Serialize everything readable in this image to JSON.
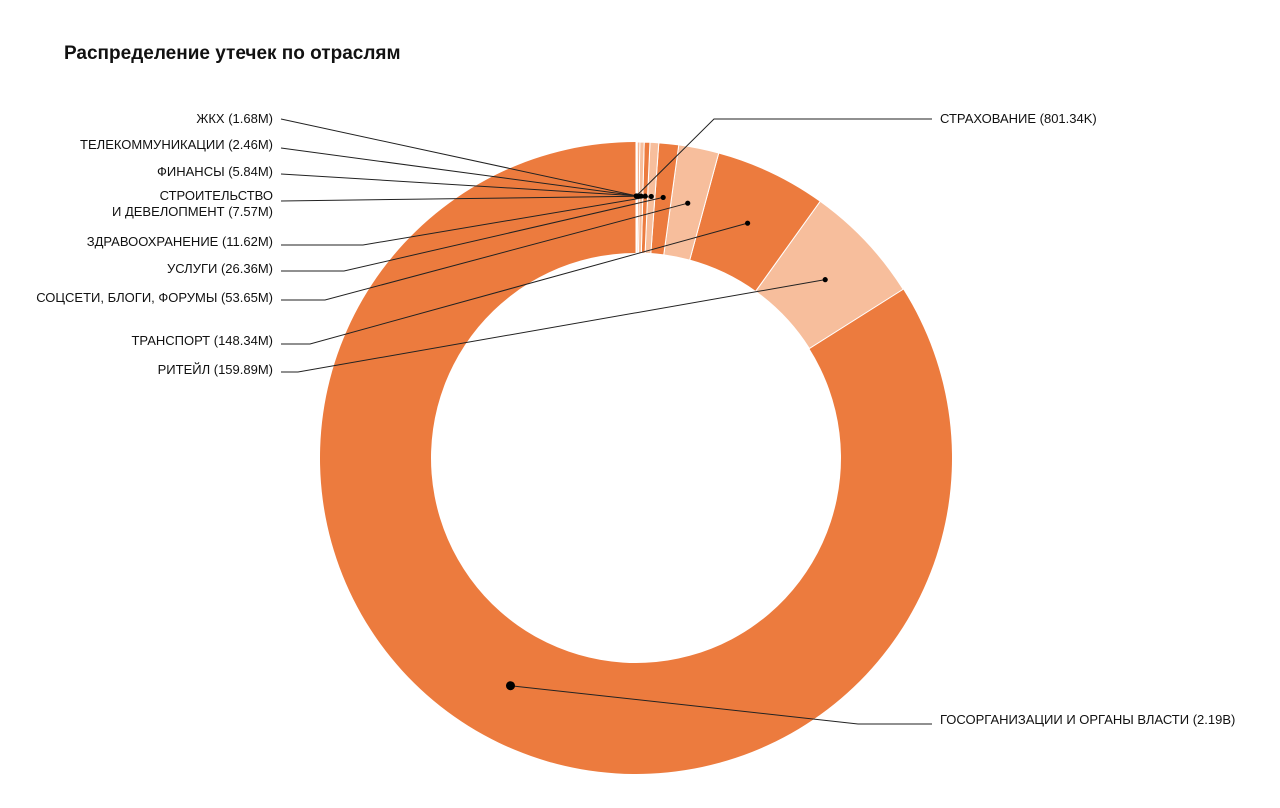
{
  "title": "Распределение утечек по отраслям",
  "colors": {
    "dark": "#EC7B3E",
    "light": "#F7BE9C",
    "separator": "#FFFFFF",
    "leader": "#222222"
  },
  "chart_data": {
    "type": "donut",
    "title": "Распределение утечек по отраслям",
    "unit_note": "values in records; K = thousand, M = million, B = billion",
    "series": [
      {
        "label": "ГОСОРГАНИЗАЦИИ И ОРГАНЫ ВЛАСТИ (2.19B)",
        "value": 2190000000,
        "display": "2.19B"
      },
      {
        "label": "РИТЕЙЛ (159.89M)",
        "value": 159890000,
        "display": "159.89M"
      },
      {
        "label": "ТРАНСПОРТ (148.34M)",
        "value": 148340000,
        "display": "148.34M"
      },
      {
        "label": "СОЦСЕТИ, БЛОГИ, ФОРУМЫ (53.65M)",
        "value": 53650000,
        "display": "53.65M"
      },
      {
        "label": "УСЛУГИ (26.36M)",
        "value": 26360000,
        "display": "26.36M"
      },
      {
        "label": "ЗДРАВООХРАНЕНИЕ (11.62M)",
        "value": 11620000,
        "display": "11.62M"
      },
      {
        "label_lines": [
          "СТРОИТЕЛЬСТВО",
          "И ДЕВЕЛОПМЕНТ (7.57M)"
        ],
        "value": 7570000,
        "display": "7.57M"
      },
      {
        "label": "ФИНАНСЫ (5.84M)",
        "value": 5840000,
        "display": "5.84M"
      },
      {
        "label": "ТЕЛЕКОММУНИКАЦИИ (2.46M)",
        "value": 2460000,
        "display": "2.46M"
      },
      {
        "label": "ЖКХ (1.68M)",
        "value": 1680000,
        "display": "1.68M"
      },
      {
        "label": "СТРАХОВАНИЕ (801.34K)",
        "value": 801340,
        "display": "801.34K"
      }
    ],
    "legend": "none (leader-line labels)"
  }
}
